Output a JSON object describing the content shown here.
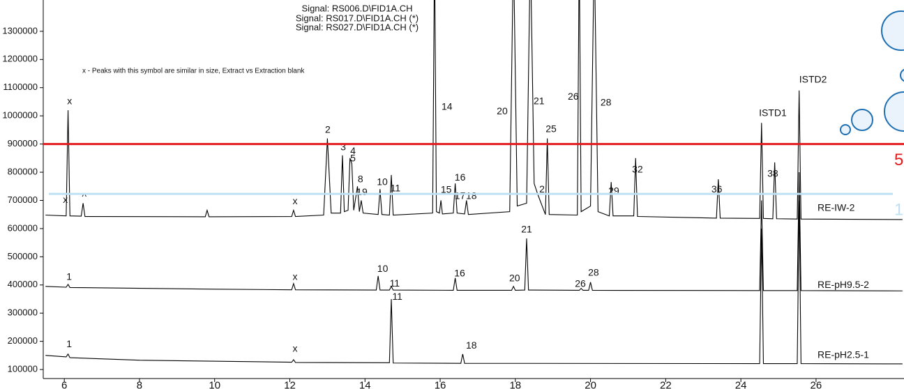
{
  "chart_data": {
    "type": "line",
    "signals": [
      "Signal: RS006.D\\FID1A.CH",
      "Signal: RS017.D\\FID1A.CH (*)",
      "Signal: RS027.D\\FID1A.CH (*)"
    ],
    "note": "x - Peaks with this symbol are similar in size, Extract vs Extraction blank",
    "xlim": [
      5.44,
      28.34
    ],
    "xticks": [
      6,
      8,
      10,
      12,
      14,
      16,
      18,
      20,
      22,
      24,
      26
    ],
    "ylim": [
      68000,
      1411000
    ],
    "yticks": [
      100000,
      200000,
      300000,
      400000,
      500000,
      600000,
      700000,
      800000,
      900000,
      1000000,
      1100000,
      1200000,
      1300000
    ],
    "series": [
      {
        "name": "RE-IW-2",
        "color": "#000000",
        "x": [
          5.5,
          6.05,
          6.1,
          6.15,
          6.45,
          6.5,
          6.55,
          9.75,
          9.8,
          9.85,
          12.05,
          12.1,
          12.15,
          12.9,
          13.0,
          13.1,
          13.35,
          13.4,
          13.45,
          13.55,
          13.6,
          13.65,
          13.7,
          13.8,
          13.85,
          13.9,
          13.95,
          14.35,
          14.4,
          14.45,
          14.65,
          14.7,
          14.75,
          15.8,
          15.85,
          15.9,
          15.98,
          16.02,
          16.06,
          16.35,
          16.4,
          16.45,
          16.65,
          16.7,
          16.75,
          17.85,
          17.95,
          18.05,
          18.3,
          18.4,
          18.5,
          18.6,
          18.8,
          18.85,
          18.9,
          19.65,
          19.7,
          19.75,
          20.0,
          20.1,
          20.2,
          20.5,
          20.55,
          20.6,
          21.15,
          21.2,
          21.25,
          23.35,
          23.4,
          23.45,
          24.5,
          24.55,
          24.6,
          24.85,
          24.9,
          24.95,
          25.5,
          25.55,
          25.6,
          28.3
        ],
        "values": [
          648000,
          645000,
          1020000,
          645000,
          644000,
          690000,
          643000,
          642000,
          665000,
          642000,
          643000,
          665000,
          643000,
          648000,
          920000,
          655000,
          655000,
          860000,
          660000,
          665000,
          850000,
          830000,
          665000,
          750000,
          660000,
          700000,
          655000,
          650000,
          740000,
          650000,
          648000,
          790000,
          648000,
          655000,
          1600000,
          660000,
          655000,
          700000,
          652000,
          655000,
          760000,
          655000,
          652000,
          700000,
          650000,
          660000,
          1600000,
          680000,
          690000,
          1600000,
          760000,
          720000,
          650000,
          920000,
          650000,
          648000,
          1600000,
          660000,
          680000,
          1600000,
          660000,
          645000,
          765000,
          645000,
          645000,
          850000,
          643000,
          637000,
          775000,
          637000,
          636000,
          975000,
          636000,
          635000,
          835000,
          635000,
          634000,
          1090000,
          634000,
          632000
        ]
      },
      {
        "name": "RE-pH9.5-2",
        "color": "#000000",
        "x": [
          5.5,
          6.05,
          6.1,
          6.15,
          10.0,
          12.05,
          12.1,
          12.15,
          14.3,
          14.35,
          14.4,
          14.65,
          14.7,
          14.75,
          16.35,
          16.4,
          16.45,
          17.9,
          17.95,
          18.0,
          18.25,
          18.3,
          18.35,
          19.7,
          19.75,
          19.8,
          19.95,
          20.0,
          20.05,
          24.5,
          24.55,
          24.6,
          25.5,
          25.55,
          25.6,
          28.3
        ],
        "values": [
          395000,
          392000,
          402000,
          391000,
          385000,
          383000,
          405000,
          383000,
          382000,
          432000,
          382000,
          382000,
          395000,
          382000,
          381000,
          425000,
          381000,
          381000,
          395000,
          381000,
          382000,
          565000,
          382000,
          381000,
          388000,
          381000,
          381000,
          410000,
          381000,
          380000,
          700000,
          380000,
          380000,
          800000,
          380000,
          379000
        ]
      },
      {
        "name": "RE-pH2.5-1",
        "color": "#000000",
        "x": [
          5.5,
          6.05,
          6.1,
          6.15,
          8.0,
          12.05,
          12.1,
          12.15,
          14.65,
          14.7,
          14.75,
          16.55,
          16.6,
          16.65,
          24.5,
          24.55,
          24.6,
          25.5,
          25.55,
          25.6,
          28.3
        ],
        "values": [
          150000,
          145000,
          155000,
          142000,
          133000,
          126000,
          135000,
          125000,
          124000,
          350000,
          123000,
          122000,
          155000,
          122000,
          121000,
          600000,
          121000,
          121000,
          700000,
          121000,
          120000
        ]
      }
    ],
    "annotations": [
      {
        "text": "x",
        "x": 6.14,
        "y": 1050000
      },
      {
        "text": "x",
        "x": 6.03,
        "y": 701000
      },
      {
        "text": "^",
        "x": 6.53,
        "y": 711000
      },
      {
        "text": "x",
        "x": 12.14,
        "y": 696000
      },
      {
        "text": "2",
        "x": 13.01,
        "y": 949000
      },
      {
        "text": "3",
        "x": 13.42,
        "y": 887000
      },
      {
        "text": "4",
        "x": 13.68,
        "y": 874000
      },
      {
        "text": "5",
        "x": 13.68,
        "y": 847000
      },
      {
        "text": "8",
        "x": 13.88,
        "y": 773000
      },
      {
        "text": "19",
        "x": 13.92,
        "y": 728000
      },
      {
        "text": "10",
        "x": 14.46,
        "y": 763000
      },
      {
        "text": "11",
        "x": 14.81,
        "y": 741000
      },
      {
        "text": "14",
        "x": 16.18,
        "y": 1030000
      },
      {
        "text": "15",
        "x": 16.16,
        "y": 736000
      },
      {
        "text": "16",
        "x": 16.53,
        "y": 780000
      },
      {
        "text": "17",
        "x": 16.53,
        "y": 714000
      },
      {
        "text": "18",
        "x": 16.83,
        "y": 714000
      },
      {
        "text": "20",
        "x": 17.65,
        "y": 1015000
      },
      {
        "text": "21",
        "x": 18.63,
        "y": 1050000
      },
      {
        "text": "2",
        "x": 18.71,
        "y": 738000
      },
      {
        "text": "25",
        "x": 18.95,
        "y": 951000
      },
      {
        "text": "26",
        "x": 19.54,
        "y": 1067000
      },
      {
        "text": "28",
        "x": 20.41,
        "y": 1045000
      },
      {
        "text": "29",
        "x": 20.62,
        "y": 731000
      },
      {
        "text": "32",
        "x": 21.25,
        "y": 808000
      },
      {
        "text": "36",
        "x": 23.36,
        "y": 738000
      },
      {
        "text": "38",
        "x": 24.85,
        "y": 793000
      },
      {
        "text": "ISTD1",
        "x": 24.85,
        "y": 1008000
      },
      {
        "text": "ISTD2",
        "x": 25.92,
        "y": 1127000
      },
      {
        "text": "1",
        "x": 6.13,
        "y": 427000
      },
      {
        "text": "x",
        "x": 12.14,
        "y": 427000
      },
      {
        "text": "10",
        "x": 14.47,
        "y": 456000
      },
      {
        "text": "11",
        "x": 14.79,
        "y": 404000
      },
      {
        "text": "16",
        "x": 16.52,
        "y": 439000
      },
      {
        "text": "20",
        "x": 17.98,
        "y": 422000
      },
      {
        "text": "21",
        "x": 18.3,
        "y": 595000
      },
      {
        "text": "26",
        "x": 19.73,
        "y": 402000
      },
      {
        "text": "28",
        "x": 20.08,
        "y": 442000
      },
      {
        "text": "11",
        "x": 14.86,
        "y": 357000
      },
      {
        "text": "1",
        "x": 6.13,
        "y": 189000
      },
      {
        "text": "x",
        "x": 12.14,
        "y": 172000
      },
      {
        "text": "18",
        "x": 16.83,
        "y": 184000
      }
    ],
    "reference_lines": [
      {
        "value": 900000,
        "color": "#e31a1c",
        "label": "5"
      },
      {
        "value": 723000,
        "color": "#bfe0f2",
        "label": "1"
      }
    ]
  }
}
